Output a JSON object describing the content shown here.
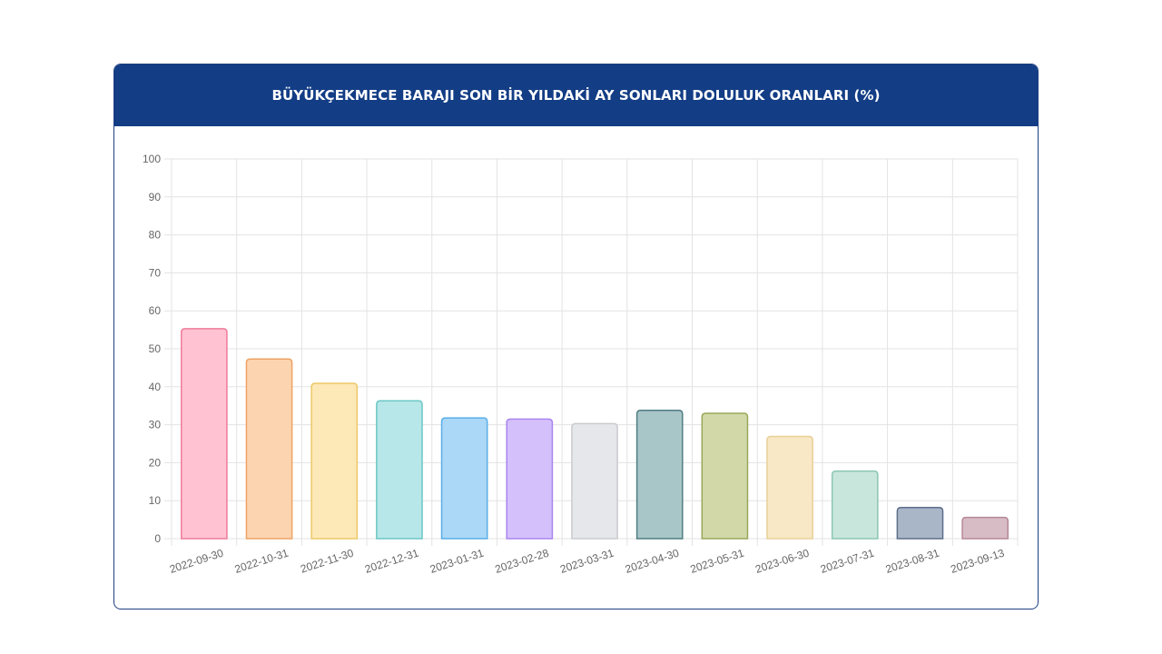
{
  "chart_data": {
    "type": "bar",
    "title": "BÜYÜKÇEKMECE BARAJI SON BİR YILDAKİ AY SONLARI DOLULUK ORANLARI (%)",
    "xlabel": "",
    "ylabel": "",
    "ylim": [
      0,
      100
    ],
    "yticks": [
      "0",
      "10",
      "20",
      "30",
      "40",
      "50",
      "60",
      "70",
      "80",
      "90",
      "100"
    ],
    "grid": true,
    "categories": [
      "2022-09-30",
      "2022-10-31",
      "2022-11-30",
      "2022-12-31",
      "2023-01-31",
      "2023-02-28",
      "2023-03-31",
      "2023-04-30",
      "2023-05-31",
      "2023-06-30",
      "2023-07-31",
      "2023-08-31",
      "2023-09-13"
    ],
    "values": [
      55.3,
      47.3,
      40.9,
      36.3,
      31.8,
      31.5,
      30.3,
      33.8,
      33.0,
      26.9,
      17.8,
      8.2,
      5.6
    ],
    "bar_fills": [
      "#ffc2d2",
      "#fcd5b0",
      "#fde8b7",
      "#b7e7e8",
      "#abd8f6",
      "#d4c0fb",
      "#e6e7ea",
      "#a8c5c8",
      "#d2d8a8",
      "#f8e8c5",
      "#c9e6dc",
      "#a9b6c8",
      "#d8bcc5"
    ],
    "bar_strokes": [
      "#f07b99",
      "#eea264",
      "#ebc966",
      "#6cc7c6",
      "#5aaee8",
      "#a885f0",
      "#c9cbd0",
      "#4f7d82",
      "#9aa75a",
      "#e8cf96",
      "#8bc7b1",
      "#5c6e8c",
      "#b58896"
    ]
  }
}
